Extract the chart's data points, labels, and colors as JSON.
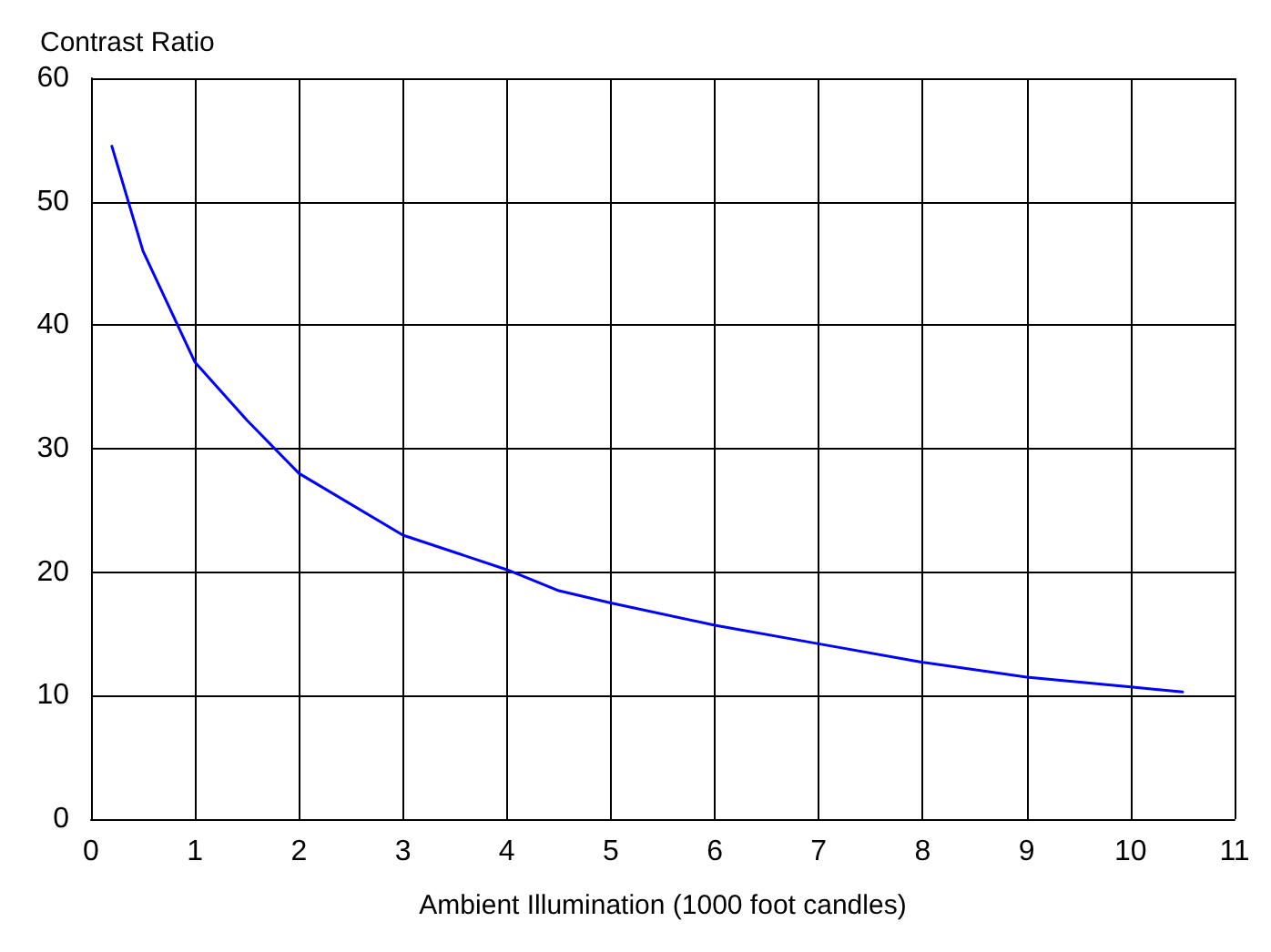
{
  "chart_data": {
    "type": "line",
    "xlabel": "Ambient Illumination (1000 foot candles)",
    "ylabel": "Contrast Ratio",
    "x": [
      0.2,
      0.5,
      1,
      1.5,
      2,
      3,
      4,
      4.5,
      5,
      6,
      7,
      8,
      9,
      10,
      10.5
    ],
    "series": [
      {
        "color": "#0000ff",
        "values": [
          54.5,
          46,
          37,
          32.3,
          28,
          23,
          20.2,
          18.5,
          17.5,
          15.7,
          14.2,
          12.7,
          11.5,
          10.7,
          10.3
        ]
      }
    ],
    "xlim": [
      0,
      11
    ],
    "xticks": [
      0,
      1,
      2,
      3,
      4,
      5,
      6,
      7,
      8,
      9,
      10,
      11
    ],
    "ylim": [
      0,
      60
    ],
    "yticks": [
      0,
      10,
      20,
      30,
      40,
      50,
      60
    ],
    "grid": true,
    "marker": "none",
    "line_style": "solid"
  }
}
